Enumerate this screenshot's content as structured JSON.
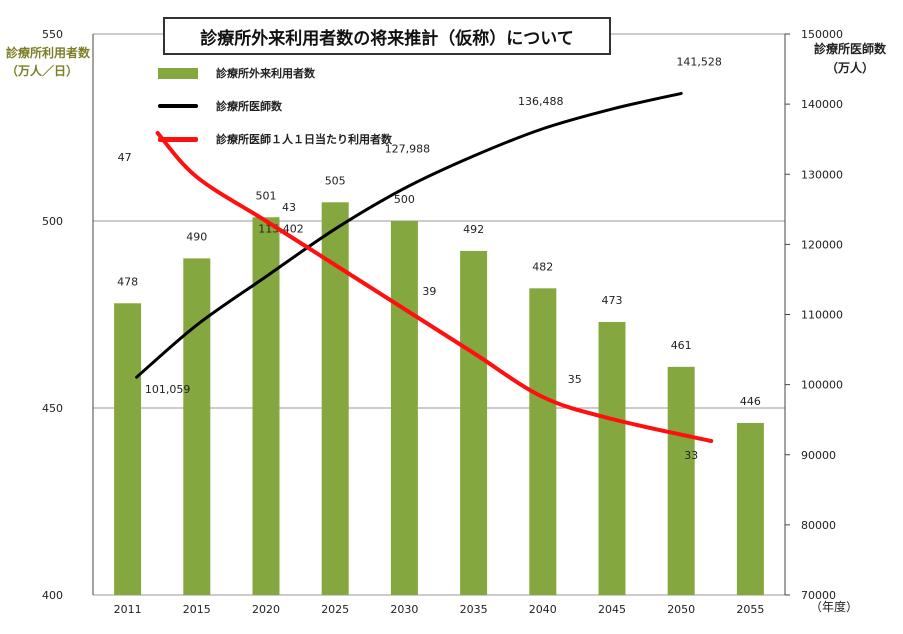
{
  "title": "診療所外来利用者数の将来推計（仮称）について",
  "y_left_label": "診療所利用者数",
  "y_left_unit": "（万人／日）",
  "y_right_label": "診療所医師数",
  "y_right_unit": "（万人）",
  "x_unit": "（年度）",
  "legend": {
    "bar": "診療所外来利用者数",
    "black_line": "診療所医師数",
    "red_line": "診療所医師１人１日当たり利用者数"
  },
  "colors": {
    "bar": "#84a83f",
    "doctors_line": "#000000",
    "per_doctor_line": "#ff1010",
    "grid": "#9a9a9a"
  },
  "chart_data": {
    "type": "bar",
    "categories": [
      "2011",
      "2015",
      "2020",
      "2025",
      "2030",
      "2035",
      "2040",
      "2045",
      "2050",
      "2055"
    ],
    "ylim_left": [
      400,
      550
    ],
    "yticks_left": [
      400,
      450,
      500,
      550
    ],
    "ylim_right": [
      70000,
      150000
    ],
    "yticks_right": [
      70000,
      80000,
      90000,
      100000,
      110000,
      120000,
      130000,
      140000,
      150000
    ],
    "grid": true,
    "series": [
      {
        "name": "診療所外来利用者数",
        "kind": "bar",
        "axis": "left",
        "values": [
          478,
          490,
          501,
          505,
          500,
          492,
          482,
          473,
          461,
          446
        ],
        "labels": [
          "478",
          "490",
          "501",
          "505",
          "500",
          "492",
          "482",
          "473",
          "461",
          "446"
        ]
      },
      {
        "name": "診療所医師数",
        "kind": "line",
        "axis": "right",
        "values": [
          101059,
          108500,
          115402,
          122200,
          127988,
          132600,
          136488,
          139300,
          141528,
          null
        ],
        "labels": [
          "101,059",
          "",
          "115,402",
          "",
          "127,988",
          "",
          "136,488",
          "",
          "141,528",
          ""
        ]
      },
      {
        "name": "診療所医師１人１日当たり利用者数",
        "kind": "line",
        "axis": "right",
        "values_raw": [
          47,
          45,
          43,
          41,
          39,
          37,
          35,
          34,
          33,
          null
        ],
        "labels": [
          "47",
          "",
          "43",
          "",
          "39",
          "",
          "35",
          "",
          "33",
          ""
        ]
      }
    ]
  }
}
